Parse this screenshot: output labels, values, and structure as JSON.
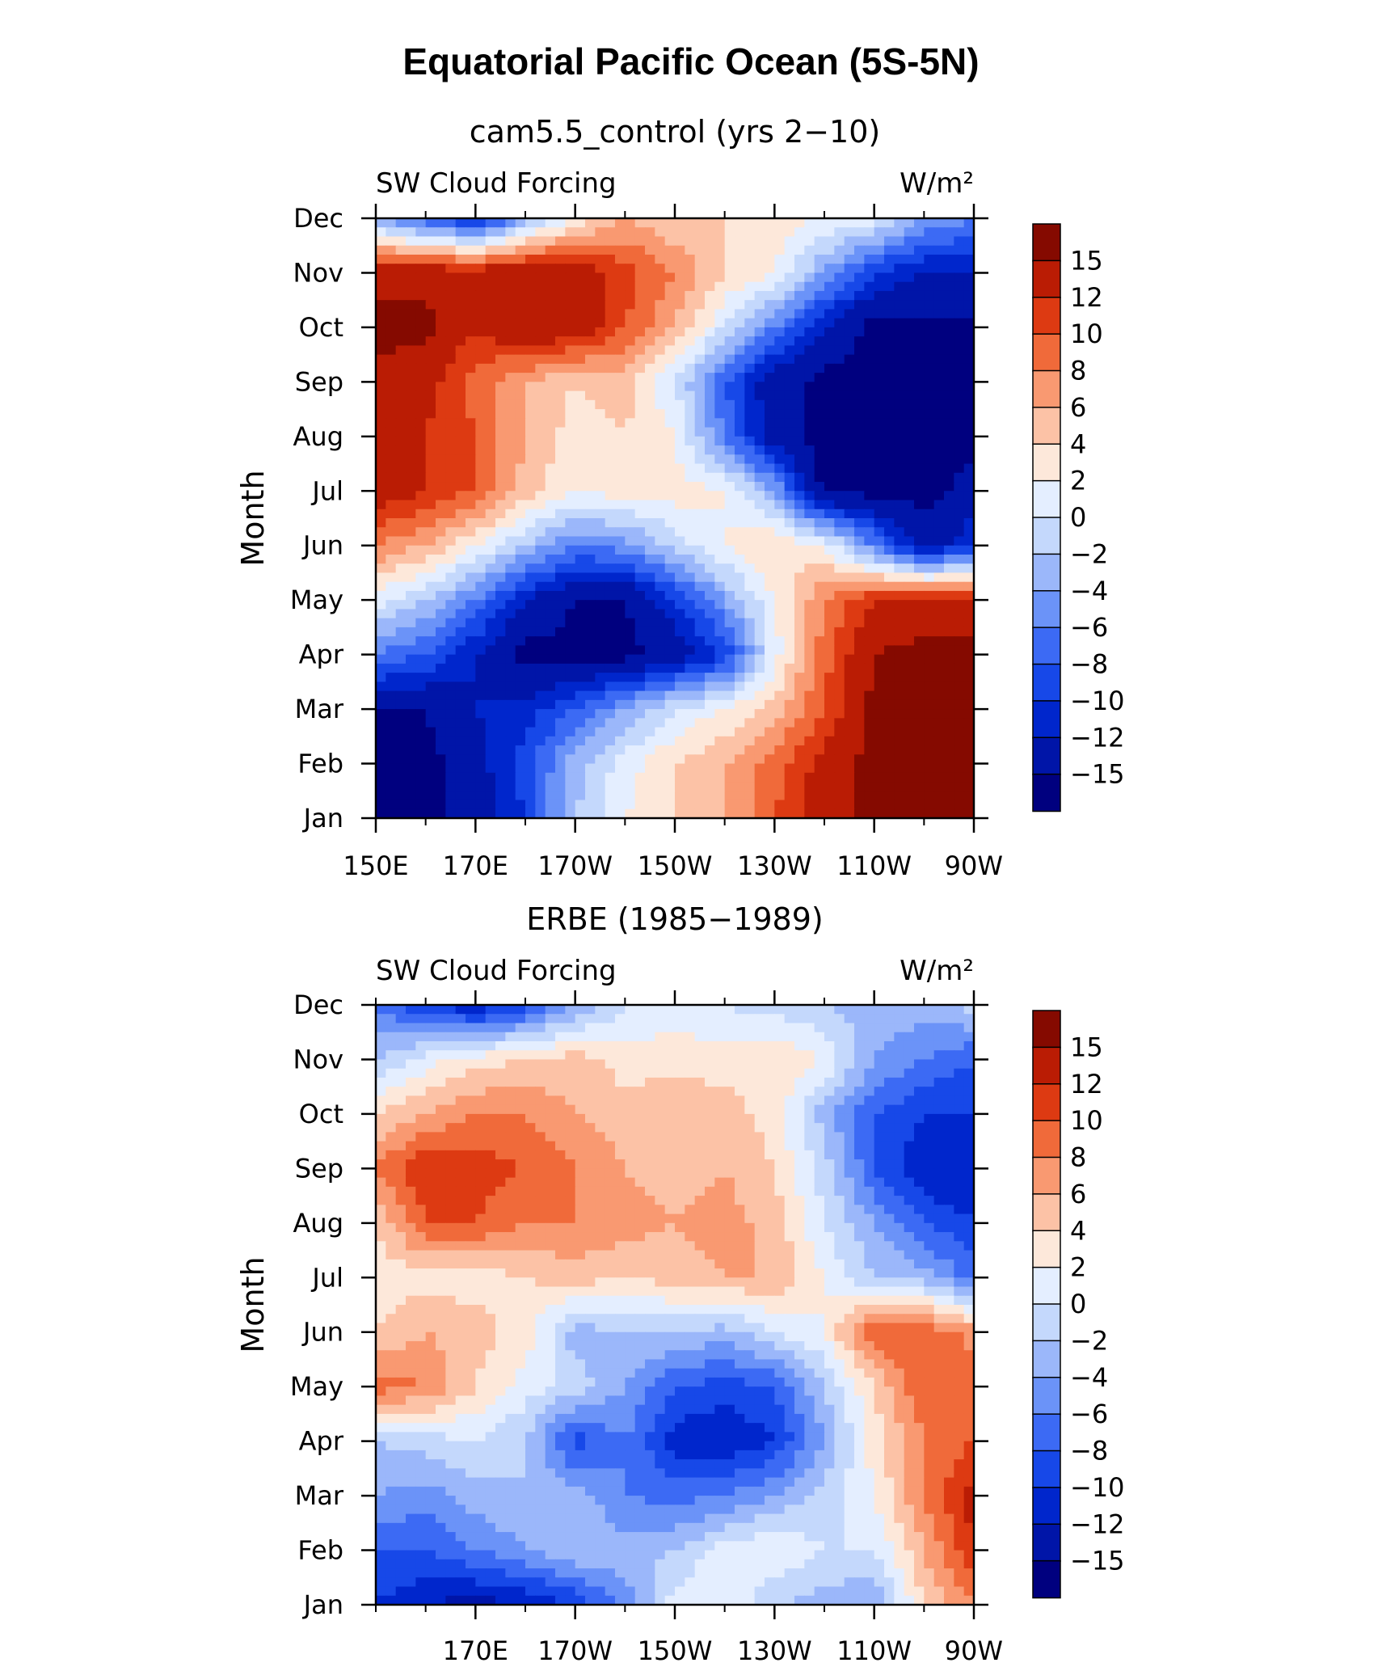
{
  "figure": {
    "title": "Equatorial Pacific Ocean (5S-5N)"
  },
  "chart_data": [
    {
      "type": "heatmap",
      "title": "cam5.5_control (yrs 2−10)",
      "left_label": "SW Cloud Forcing",
      "right_label": "W/m²",
      "ylabel": "Month",
      "months": [
        "Jan",
        "Feb",
        "Mar",
        "Apr",
        "May",
        "Jun",
        "Jul",
        "Aug",
        "Sep",
        "Oct",
        "Nov",
        "Dec"
      ],
      "x_tick_labels": [
        "150E",
        "170E",
        "170W",
        "150W",
        "130W",
        "110W",
        "90W"
      ],
      "x_tick_lons": [
        150,
        170,
        190,
        210,
        230,
        250,
        270
      ],
      "xlim": [
        150,
        270
      ],
      "x_minor_step": 10,
      "lons": [
        150,
        160,
        170,
        180,
        190,
        200,
        210,
        220,
        230,
        240,
        250,
        260,
        270
      ],
      "values": [
        [
          -16,
          -16,
          -14,
          -10,
          -2,
          2,
          4,
          6,
          10,
          14,
          16,
          16,
          16
        ],
        [
          -16,
          -16,
          -13,
          -9,
          -3,
          1,
          4,
          6,
          9,
          13,
          16,
          16,
          16
        ],
        [
          -15,
          -15,
          -12,
          -11,
          -8,
          -4,
          0,
          2,
          5,
          10,
          16,
          16,
          16
        ],
        [
          -6,
          -8,
          -12,
          -16,
          -16,
          -16,
          -14,
          -10,
          1,
          9,
          15,
          16,
          16
        ],
        [
          1,
          -2,
          -6,
          -12,
          -15,
          -15,
          -10,
          -4,
          2,
          8,
          12,
          13,
          13
        ],
        [
          8,
          6,
          2,
          -2,
          -6,
          -5,
          -1,
          2,
          4,
          2,
          -6,
          -14,
          -10
        ],
        [
          14,
          12,
          10,
          5,
          2,
          3,
          3,
          2,
          -4,
          -16,
          -16,
          -16,
          -14
        ],
        [
          12,
          12,
          10,
          6,
          3,
          4,
          2,
          -6,
          -14,
          -16,
          -16,
          -16,
          -16
        ],
        [
          14,
          13,
          9,
          6,
          4,
          5,
          0,
          -8,
          -14,
          -16,
          -16,
          -16,
          -16
        ],
        [
          16,
          16,
          12,
          15,
          14,
          10,
          6,
          0,
          -6,
          -12,
          -16,
          -16,
          -16
        ],
        [
          14,
          14,
          14,
          15,
          14,
          11,
          8,
          4,
          2,
          -4,
          -10,
          -12,
          -12
        ],
        [
          -4,
          -8,
          -12,
          -4,
          2,
          6,
          4,
          4,
          3,
          2,
          1,
          -4,
          -6
        ]
      ]
    },
    {
      "type": "heatmap",
      "title": "ERBE (1985−1989)",
      "left_label": "SW Cloud Forcing",
      "right_label": "W/m²",
      "ylabel": "Month",
      "months": [
        "Jan",
        "Feb",
        "Mar",
        "Apr",
        "May",
        "Jun",
        "Jul",
        "Aug",
        "Sep",
        "Oct",
        "Nov",
        "Dec"
      ],
      "x_tick_labels": [
        "170E",
        "170W",
        "150W",
        "130W",
        "110W",
        "90W"
      ],
      "x_tick_lons": [
        170,
        190,
        210,
        230,
        250,
        270
      ],
      "xlim": [
        150,
        270
      ],
      "x_minor_step": 10,
      "lons": [
        150,
        160,
        170,
        180,
        190,
        200,
        210,
        220,
        230,
        240,
        250,
        260,
        270
      ],
      "values": [
        [
          -10,
          -12,
          -13,
          -12,
          -10,
          -5,
          1,
          2,
          -2,
          -3,
          -4,
          4,
          8
        ],
        [
          -8,
          -8,
          -6,
          -4,
          -2,
          -3,
          -2,
          1,
          2,
          0,
          0,
          6,
          12
        ],
        [
          -4,
          -5,
          -3,
          -2,
          -3,
          -6,
          -7,
          -6,
          -4,
          -1,
          2,
          8,
          13
        ],
        [
          -2,
          -1,
          0,
          -2,
          -9,
          -6,
          -11,
          -12,
          -10,
          -4,
          3,
          8,
          10
        ],
        [
          9,
          8,
          4,
          1,
          -1,
          -4,
          -8,
          -9,
          -8,
          -2,
          4,
          10,
          9
        ],
        [
          4,
          6,
          5,
          3,
          -3,
          -2,
          -2,
          -3,
          0,
          2,
          10,
          10,
          7
        ],
        [
          3,
          3,
          3,
          4,
          5,
          4,
          5,
          6,
          6,
          2,
          -2,
          -3,
          -7
        ],
        [
          4,
          10,
          10,
          8,
          8,
          7,
          6,
          7,
          5,
          0,
          -4,
          -8,
          -10
        ],
        [
          8,
          12,
          11,
          10,
          8,
          6,
          5,
          6,
          4,
          -1,
          -8,
          -12,
          -12
        ],
        [
          4,
          6,
          8,
          8,
          6,
          5,
          6,
          5,
          3,
          -3,
          -8,
          -10,
          -10
        ],
        [
          -2,
          1,
          3,
          4,
          5,
          3,
          3,
          3,
          4,
          2,
          -4,
          -6,
          -8
        ],
        [
          -6,
          -10,
          -12,
          -9,
          -4,
          0,
          1,
          0,
          -1,
          -2,
          -3,
          -3,
          -1
        ]
      ]
    }
  ],
  "colorbar": {
    "labels": [
      "15",
      "12",
      "10",
      "8",
      "6",
      "4",
      "2",
      "0",
      "−2",
      "−4",
      "−6",
      "−8",
      "−10",
      "−12",
      "−15"
    ],
    "levels": [
      -15,
      -12,
      -10,
      -8,
      -6,
      -4,
      -2,
      0,
      2,
      4,
      6,
      8,
      10,
      12,
      15
    ],
    "colors": [
      "#00007f",
      "#0015a8",
      "#0026cc",
      "#1748e8",
      "#3c6af4",
      "#6b93f8",
      "#9bb7fa",
      "#c4d8fc",
      "#e4eeff",
      "#fde8da",
      "#fcc2a6",
      "#f99971",
      "#f06a3a",
      "#dd3a12",
      "#ba1c04",
      "#850a00"
    ]
  }
}
